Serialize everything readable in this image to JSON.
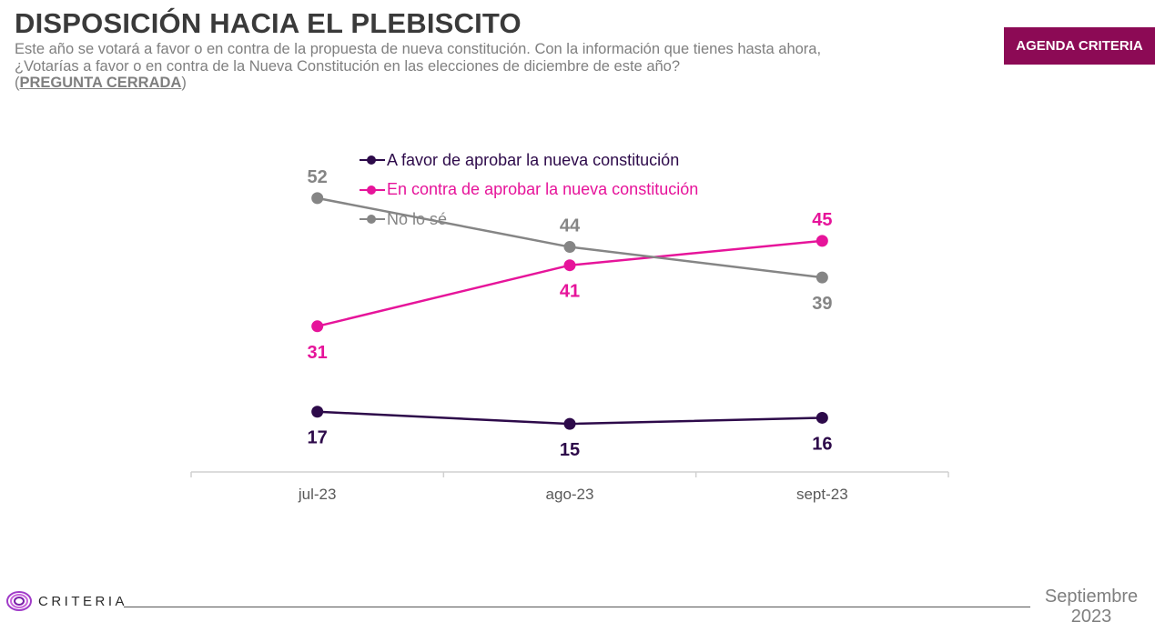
{
  "header": {
    "title": "DISPOSICIÓN HACIA EL PLEBISCITO",
    "subtitle_line1": "Este año se votará a favor o en contra de la propuesta de nueva constitución. Con la información que tienes hasta ahora,",
    "subtitle_line2": "¿Votarías a favor o en contra de la Nueva Constitución en las elecciones de diciembre de este año?",
    "question_type": "PREGUNTA CERRADA",
    "badge": "AGENDA CRITERIA"
  },
  "footer": {
    "brand": "CRITERIA",
    "date_month": "Septiembre",
    "date_year": "2023"
  },
  "chart_data": {
    "type": "line",
    "title": "",
    "xlabel": "",
    "ylabel": "",
    "categories": [
      "jul-23",
      "ago-23",
      "sept-23"
    ],
    "ylim": [
      0,
      100
    ],
    "grid": false,
    "legend_position": "top",
    "series": [
      {
        "name": "A favor de aprobar la nueva constitución",
        "color": "#2d0a4a",
        "values": [
          17,
          15,
          16
        ]
      },
      {
        "name": "En contra de aprobar la nueva constitución",
        "color": "#e6149a",
        "values": [
          31,
          41,
          45
        ]
      },
      {
        "name": "No lo sé",
        "color": "#858585",
        "values": [
          52,
          44,
          39
        ]
      }
    ]
  }
}
